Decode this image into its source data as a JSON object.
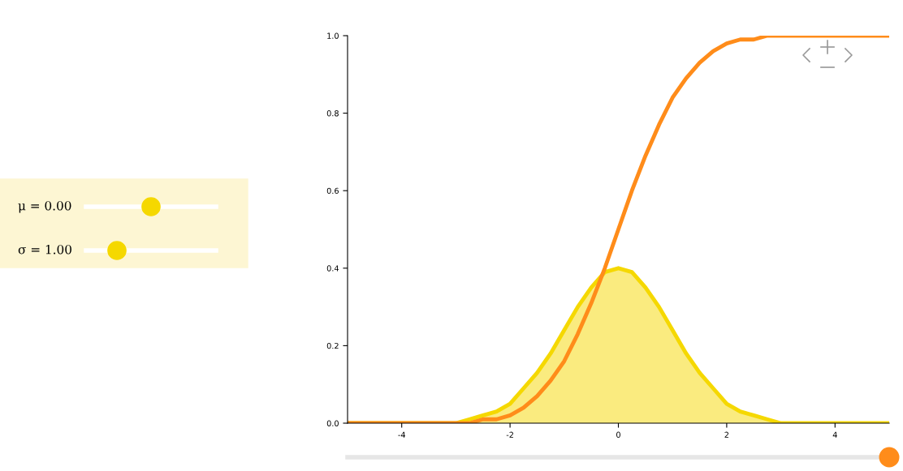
{
  "chart_data": {
    "type": "line",
    "x": [
      -5,
      -4.75,
      -4.5,
      -4.25,
      -4,
      -3.75,
      -3.5,
      -3.25,
      -3,
      -2.75,
      -2.5,
      -2.25,
      -2,
      -1.75,
      -1.5,
      -1.25,
      -1,
      -0.75,
      -0.5,
      -0.25,
      0,
      0.25,
      0.5,
      0.75,
      1,
      1.25,
      1.5,
      1.75,
      2,
      2.25,
      2.5,
      2.75,
      3,
      3.25,
      3.5,
      3.75,
      4,
      4.25,
      4.5,
      4.75,
      5
    ],
    "series": [
      {
        "type": "area",
        "color": "#f5d800",
        "values": [
          0,
          0,
          0,
          0,
          0,
          0,
          0,
          0,
          0,
          0.01,
          0.02,
          0.03,
          0.05,
          0.09,
          0.13,
          0.18,
          0.24,
          0.3,
          0.35,
          0.39,
          0.4,
          0.39,
          0.35,
          0.3,
          0.24,
          0.18,
          0.13,
          0.09,
          0.05,
          0.03,
          0.02,
          0.01,
          0,
          0,
          0,
          0,
          0,
          0,
          0,
          0,
          0
        ]
      },
      {
        "color": "#ff8c1a",
        "values": [
          0,
          0,
          0,
          0,
          0,
          0,
          0,
          0,
          0,
          0,
          0.01,
          0.01,
          0.02,
          0.04,
          0.07,
          0.11,
          0.16,
          0.23,
          0.31,
          0.4,
          0.5,
          0.6,
          0.69,
          0.77,
          0.84,
          0.89,
          0.93,
          0.96,
          0.98,
          0.99,
          0.99,
          1,
          1,
          1,
          1,
          1,
          1,
          1,
          1,
          1,
          1
        ]
      }
    ],
    "xlim": [
      -5,
      5
    ],
    "xticks": [
      -4,
      -2,
      0,
      2,
      4
    ],
    "ylim": [
      0,
      1
    ],
    "yticks": [
      {
        "value": 0,
        "label": "0.0"
      },
      {
        "value": 0.2,
        "label": "0.2"
      },
      {
        "value": 0.4,
        "label": "0.4"
      },
      {
        "value": 0.6,
        "label": "0.6"
      },
      {
        "value": 0.8,
        "label": "0.8"
      },
      {
        "value": 1,
        "label": "1.0"
      }
    ],
    "grid": false,
    "legend": false,
    "annotations": [
      "μ = 0.00",
      "σ = 1.00"
    ]
  }
}
